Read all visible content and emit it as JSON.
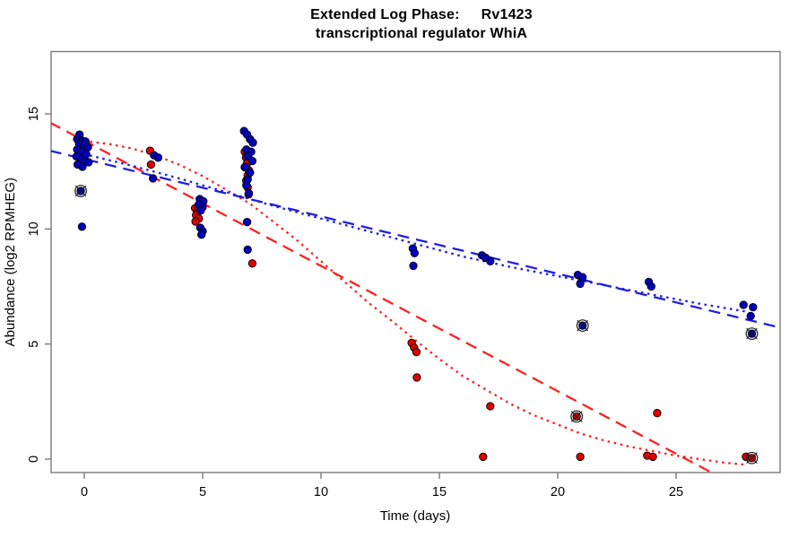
{
  "chart_data": {
    "type": "scatter",
    "title": {
      "line1_left": "Extended Log Phase:",
      "line1_right": "Rv1423",
      "line2": "transcriptional regulator WhiA"
    },
    "xlabel": "Time (days)",
    "ylabel": "Abundance (log2 RPMHEG)",
    "x_ticks": [
      0,
      5,
      10,
      15,
      20,
      25
    ],
    "y_ticks": [
      0,
      5,
      10,
      15
    ],
    "xlim": [
      -1.45,
      29.45
    ],
    "ylim": [
      -0.6,
      17.7
    ],
    "grid": false,
    "legend": "none",
    "colors": {
      "blue_points": "#0000BE",
      "red_points": "#DE0000",
      "blue_line": "#2020E0",
      "red_line": "#FF2020",
      "axis": "#7a7a7a",
      "outlier_ring": "#1a1a1a"
    },
    "series": [
      {
        "name": "blue",
        "point_color": "#0000BE",
        "points": [
          [
            -0.2,
            14.1
          ],
          [
            -0.3,
            13.9
          ],
          [
            -0.12,
            13.85
          ],
          [
            0.05,
            13.8
          ],
          [
            -0.22,
            13.7
          ],
          [
            -0.02,
            13.65
          ],
          [
            0.15,
            13.55
          ],
          [
            -0.3,
            13.45
          ],
          [
            -0.12,
            13.35
          ],
          [
            0.08,
            13.25
          ],
          [
            -0.33,
            13.15
          ],
          [
            -0.15,
            13.05
          ],
          [
            0.03,
            12.95
          ],
          [
            0.18,
            12.9
          ],
          [
            -0.28,
            12.8
          ],
          [
            -0.08,
            12.7
          ],
          [
            -0.1,
            10.1
          ],
          [
            2.95,
            13.2
          ],
          [
            3.12,
            13.1
          ],
          [
            2.9,
            12.2
          ],
          [
            4.88,
            11.3
          ],
          [
            5.03,
            11.2
          ],
          [
            4.83,
            11.05
          ],
          [
            5.0,
            10.95
          ],
          [
            4.92,
            10.8
          ],
          [
            4.9,
            10.05
          ],
          [
            5.0,
            9.9
          ],
          [
            4.95,
            9.75
          ],
          [
            6.75,
            14.25
          ],
          [
            6.88,
            14.1
          ],
          [
            7.0,
            13.9
          ],
          [
            7.12,
            13.75
          ],
          [
            6.85,
            13.45
          ],
          [
            7.05,
            13.35
          ],
          [
            6.9,
            13.15
          ],
          [
            7.1,
            12.95
          ],
          [
            6.8,
            12.7
          ],
          [
            7.0,
            12.45
          ],
          [
            6.9,
            12.15
          ],
          [
            6.85,
            11.9
          ],
          [
            6.95,
            11.55
          ],
          [
            6.88,
            10.3
          ],
          [
            6.9,
            9.1
          ],
          [
            13.88,
            9.15
          ],
          [
            13.95,
            8.95
          ],
          [
            13.9,
            8.4
          ],
          [
            16.8,
            8.85
          ],
          [
            16.95,
            8.75
          ],
          [
            17.15,
            8.6
          ],
          [
            20.85,
            8.0
          ],
          [
            21.05,
            7.9
          ],
          [
            20.95,
            7.62
          ],
          [
            23.85,
            7.7
          ],
          [
            23.95,
            7.5
          ],
          [
            27.85,
            6.7
          ],
          [
            28.25,
            6.6
          ],
          [
            28.15,
            6.22
          ]
        ]
      },
      {
        "name": "red",
        "point_color": "#DE0000",
        "points": [
          [
            2.78,
            13.4
          ],
          [
            2.82,
            12.8
          ],
          [
            4.68,
            10.9
          ],
          [
            4.8,
            10.75
          ],
          [
            4.72,
            10.6
          ],
          [
            4.84,
            10.45
          ],
          [
            4.7,
            10.32
          ],
          [
            6.78,
            13.35
          ],
          [
            6.93,
            13.25
          ],
          [
            6.83,
            13.1
          ],
          [
            7.0,
            13.0
          ],
          [
            6.88,
            12.85
          ],
          [
            6.78,
            12.68
          ],
          [
            6.95,
            12.55
          ],
          [
            6.9,
            12.32
          ],
          [
            6.84,
            12.1
          ],
          [
            6.9,
            11.8
          ],
          [
            6.94,
            11.5
          ],
          [
            7.1,
            8.5
          ],
          [
            13.83,
            5.05
          ],
          [
            13.93,
            4.85
          ],
          [
            14.03,
            4.65
          ],
          [
            14.05,
            3.55
          ],
          [
            17.15,
            2.3
          ],
          [
            16.85,
            0.1
          ],
          [
            20.95,
            0.1
          ],
          [
            24.2,
            2.0
          ],
          [
            23.78,
            0.15
          ],
          [
            24.02,
            0.1
          ],
          [
            27.95,
            0.1
          ]
        ]
      }
    ],
    "outlier_points": [
      {
        "series": "blue",
        "x": -0.15,
        "y": 11.65
      },
      {
        "series": "blue",
        "x": 21.05,
        "y": 5.8
      },
      {
        "series": "blue",
        "x": 28.2,
        "y": 5.45
      },
      {
        "series": "red",
        "x": 20.8,
        "y": 1.85
      },
      {
        "series": "red",
        "x": 28.2,
        "y": 0.05
      }
    ],
    "fit_lines": [
      {
        "name": "red-linear",
        "color": "#FF2020",
        "dash": "longdash",
        "points": [
          [
            -1.45,
            14.62
          ],
          [
            26.75,
            -0.72
          ]
        ]
      },
      {
        "name": "red-curve",
        "color": "#FF2020",
        "dash": "dotted",
        "points": [
          [
            -0.3,
            13.85
          ],
          [
            1,
            13.7
          ],
          [
            2,
            13.5
          ],
          [
            3,
            13.2
          ],
          [
            4,
            12.8
          ],
          [
            5,
            12.3
          ],
          [
            6,
            11.7
          ],
          [
            7,
            11.1
          ],
          [
            8,
            10.3
          ],
          [
            9,
            9.5
          ],
          [
            10,
            8.6
          ],
          [
            11,
            7.7
          ],
          [
            12,
            6.8
          ],
          [
            13,
            6.0
          ],
          [
            14,
            5.15
          ],
          [
            15,
            4.35
          ],
          [
            16,
            3.6
          ],
          [
            17,
            3.0
          ],
          [
            18,
            2.4
          ],
          [
            19,
            1.9
          ],
          [
            20,
            1.5
          ],
          [
            21,
            1.1
          ],
          [
            22,
            0.8
          ],
          [
            23,
            0.55
          ],
          [
            24,
            0.35
          ],
          [
            25,
            0.15
          ],
          [
            26,
            0.0
          ],
          [
            27,
            -0.15
          ],
          [
            28,
            -0.25
          ]
        ]
      },
      {
        "name": "blue-linear",
        "color": "#2020E0",
        "dash": "longdash",
        "points": [
          [
            -1.45,
            13.4
          ],
          [
            29.45,
            5.7
          ]
        ]
      },
      {
        "name": "blue-curve",
        "color": "#2020E0",
        "dash": "dotted",
        "points": [
          [
            -0.3,
            13.3
          ],
          [
            0,
            13.25
          ],
          [
            2,
            12.75
          ],
          [
            4,
            12.2
          ],
          [
            6,
            11.6
          ],
          [
            8,
            11.0
          ],
          [
            10,
            10.45
          ],
          [
            12,
            9.9
          ],
          [
            14,
            9.35
          ],
          [
            16,
            8.8
          ],
          [
            18,
            8.35
          ],
          [
            20,
            7.95
          ],
          [
            22,
            7.55
          ],
          [
            24,
            7.15
          ],
          [
            26,
            6.75
          ],
          [
            28,
            6.4
          ]
        ]
      }
    ]
  }
}
